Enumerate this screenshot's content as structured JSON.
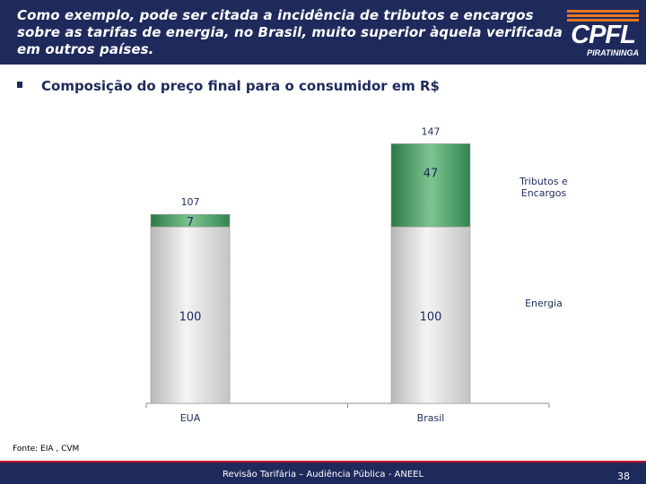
{
  "header": {
    "title": "Como exemplo, pode ser citada a incidência de tributos e encargos sobre as tarifas de energia, no Brasil, muito superior àquela verificada em outros países.",
    "logo": "CPFL",
    "logo_sub": "PIRATININGA"
  },
  "subtitle": "Composição do preço final para o consumidor em R$",
  "chart_data": {
    "type": "bar",
    "stacked": true,
    "categories": [
      "EUA",
      "Brasil"
    ],
    "series": [
      {
        "name": "Energia",
        "values": [
          100,
          100
        ],
        "color": "#d8d8d8"
      },
      {
        "name": "Tributos e Encargos",
        "values": [
          7,
          47
        ],
        "color": "#2e8b4e"
      }
    ],
    "totals": [
      107,
      147
    ],
    "segment_labels": [
      [
        "100",
        "7"
      ],
      [
        "100",
        "47"
      ]
    ],
    "total_labels": [
      "107",
      "147"
    ],
    "legend_labels": [
      "Tributos e Encargos",
      "Energia"
    ],
    "legend_position": "right",
    "ylim": [
      0,
      160
    ],
    "grid": false
  },
  "source": "Fonte: EIA , CVM",
  "footer": {
    "text": "Revisão Tarifária – Audiência Pública - ANEEL",
    "page": "38"
  },
  "colors": {
    "navy": "#1f2a5c",
    "accent_red": "#c8102e",
    "logo_orange": "#e87722",
    "label_text": "#1f2a5c"
  }
}
